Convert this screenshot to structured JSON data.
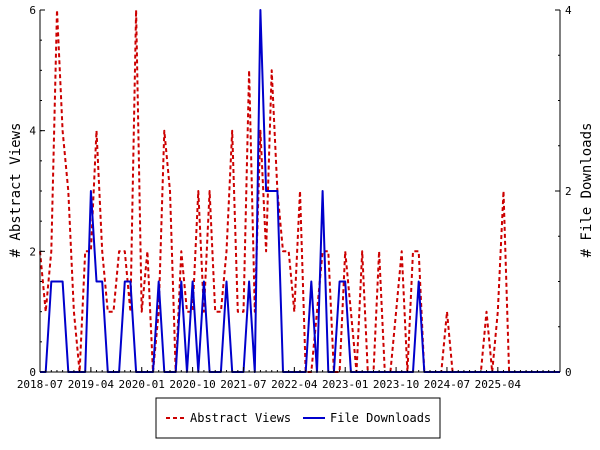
{
  "chart_data": {
    "type": "line",
    "ylabel_left": "# Abstract Views",
    "ylabel_right": "# File Downloads",
    "x_tick_labels": [
      "2018-07",
      "2019-04",
      "2020-01",
      "2020-10",
      "2021-07",
      "2022-04",
      "2023-01",
      "2023-10",
      "2024-07",
      "2025-04"
    ],
    "x_tick_months": [
      0,
      9,
      18,
      27,
      36,
      45,
      54,
      63,
      72,
      81
    ],
    "x_range_months": [
      0,
      92
    ],
    "ylim_left": [
      0,
      6
    ],
    "yticks_left": [
      0,
      2,
      4,
      6
    ],
    "ylim_right": [
      0,
      4
    ],
    "yticks_right": [
      0,
      2,
      4
    ],
    "legend_position": "bottom",
    "grid": false,
    "series": [
      {
        "name": "Abstract Views",
        "axis": "left",
        "color": "#cc0000",
        "style": "dashed",
        "points": [
          [
            0,
            2
          ],
          [
            1,
            1
          ],
          [
            2,
            2
          ],
          [
            3,
            6
          ],
          [
            4,
            4
          ],
          [
            5,
            3
          ],
          [
            6,
            1
          ],
          [
            7,
            0
          ],
          [
            8,
            2
          ],
          [
            9,
            2
          ],
          [
            10,
            4
          ],
          [
            11,
            2
          ],
          [
            12,
            1
          ],
          [
            13,
            1
          ],
          [
            14,
            2
          ],
          [
            15,
            2
          ],
          [
            16,
            1
          ],
          [
            17,
            6
          ],
          [
            18,
            1
          ],
          [
            19,
            2
          ],
          [
            20,
            0
          ],
          [
            21,
            1
          ],
          [
            22,
            4
          ],
          [
            23,
            3
          ],
          [
            24,
            0
          ],
          [
            25,
            2
          ],
          [
            26,
            1
          ],
          [
            27,
            1
          ],
          [
            28,
            3
          ],
          [
            29,
            1
          ],
          [
            30,
            3
          ],
          [
            31,
            1
          ],
          [
            32,
            1
          ],
          [
            33,
            2
          ],
          [
            34,
            4
          ],
          [
            35,
            1
          ],
          [
            36,
            1
          ],
          [
            37,
            5
          ],
          [
            38,
            1
          ],
          [
            39,
            4
          ],
          [
            40,
            2
          ],
          [
            41,
            5
          ],
          [
            42,
            3
          ],
          [
            43,
            2
          ],
          [
            44,
            2
          ],
          [
            45,
            1
          ],
          [
            46,
            3
          ],
          [
            47,
            0
          ],
          [
            48,
            0
          ],
          [
            49,
            1
          ],
          [
            50,
            2
          ],
          [
            51,
            2
          ],
          [
            52,
            0
          ],
          [
            53,
            0
          ],
          [
            54,
            2
          ],
          [
            55,
            1
          ],
          [
            56,
            0
          ],
          [
            57,
            2
          ],
          [
            58,
            0
          ],
          [
            59,
            0
          ],
          [
            60,
            2
          ],
          [
            61,
            0
          ],
          [
            62,
            0
          ],
          [
            63,
            1
          ],
          [
            64,
            2
          ],
          [
            65,
            0
          ],
          [
            66,
            2
          ],
          [
            67,
            2
          ],
          [
            68,
            0
          ],
          [
            69,
            0
          ],
          [
            70,
            0
          ],
          [
            71,
            0
          ],
          [
            72,
            1
          ],
          [
            73,
            0
          ],
          [
            74,
            0
          ],
          [
            75,
            0
          ],
          [
            76,
            0
          ],
          [
            77,
            0
          ],
          [
            78,
            0
          ],
          [
            79,
            1
          ],
          [
            80,
            0
          ],
          [
            81,
            1
          ],
          [
            82,
            3
          ],
          [
            83,
            0
          ]
        ]
      },
      {
        "name": "File Downloads",
        "axis": "right",
        "color": "#0000cc",
        "style": "solid",
        "points": [
          [
            0,
            0
          ],
          [
            1,
            0
          ],
          [
            2,
            1
          ],
          [
            3,
            1
          ],
          [
            4,
            1
          ],
          [
            5,
            0
          ],
          [
            6,
            0
          ],
          [
            7,
            0
          ],
          [
            8,
            0
          ],
          [
            9,
            2
          ],
          [
            10,
            1
          ],
          [
            11,
            1
          ],
          [
            12,
            0
          ],
          [
            13,
            0
          ],
          [
            14,
            0
          ],
          [
            15,
            1
          ],
          [
            16,
            1
          ],
          [
            17,
            0
          ],
          [
            18,
            0
          ],
          [
            19,
            0
          ],
          [
            20,
            0
          ],
          [
            21,
            1
          ],
          [
            22,
            0
          ],
          [
            23,
            0
          ],
          [
            24,
            0
          ],
          [
            25,
            1
          ],
          [
            26,
            0
          ],
          [
            27,
            1
          ],
          [
            28,
            0
          ],
          [
            29,
            1
          ],
          [
            30,
            0
          ],
          [
            31,
            0
          ],
          [
            32,
            0
          ],
          [
            33,
            1
          ],
          [
            34,
            0
          ],
          [
            35,
            0
          ],
          [
            36,
            0
          ],
          [
            37,
            1
          ],
          [
            38,
            0
          ],
          [
            39,
            4
          ],
          [
            40,
            2
          ],
          [
            41,
            2
          ],
          [
            42,
            2
          ],
          [
            43,
            0
          ],
          [
            44,
            0
          ],
          [
            45,
            0
          ],
          [
            46,
            0
          ],
          [
            47,
            0
          ],
          [
            48,
            1
          ],
          [
            49,
            0
          ],
          [
            50,
            2
          ],
          [
            51,
            0
          ],
          [
            52,
            0
          ],
          [
            53,
            1
          ],
          [
            54,
            1
          ],
          [
            55,
            0
          ],
          [
            56,
            0
          ],
          [
            57,
            0
          ],
          [
            58,
            0
          ],
          [
            59,
            0
          ],
          [
            60,
            0
          ],
          [
            61,
            0
          ],
          [
            62,
            0
          ],
          [
            63,
            0
          ],
          [
            64,
            0
          ],
          [
            65,
            0
          ],
          [
            66,
            0
          ],
          [
            67,
            1
          ],
          [
            68,
            0
          ],
          [
            69,
            0
          ],
          [
            70,
            0
          ],
          [
            71,
            0
          ],
          [
            72,
            0
          ],
          [
            73,
            0
          ],
          [
            74,
            0
          ],
          [
            75,
            0
          ],
          [
            76,
            0
          ],
          [
            77,
            0
          ],
          [
            78,
            0
          ],
          [
            79,
            0
          ],
          [
            80,
            0
          ],
          [
            81,
            0
          ],
          [
            82,
            0
          ],
          [
            83,
            0
          ],
          [
            84,
            0
          ],
          [
            85,
            0
          ],
          [
            86,
            0
          ],
          [
            87,
            0
          ],
          [
            88,
            0
          ],
          [
            89,
            0
          ],
          [
            90,
            0
          ],
          [
            91,
            0
          ],
          [
            92,
            0
          ]
        ]
      }
    ]
  },
  "legend": {
    "items": [
      {
        "label": "Abstract Views",
        "color": "#cc0000",
        "style": "dashed"
      },
      {
        "label": "File Downloads",
        "color": "#0000cc",
        "style": "solid"
      }
    ]
  }
}
